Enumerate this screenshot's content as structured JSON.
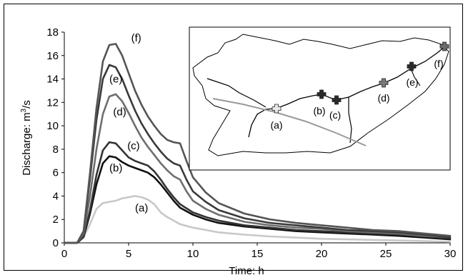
{
  "chart_data": {
    "type": "line",
    "xlabel": "Time: h",
    "ylabel": "Discharge: m",
    "ylabel_sup": "3",
    "ylabel_suffix": "/s",
    "xlim": [
      0,
      30
    ],
    "ylim": [
      0,
      18
    ],
    "xticks": [
      "0",
      "5",
      "10",
      "15",
      "20",
      "25",
      "30"
    ],
    "yticks": [
      "0",
      "2",
      "4",
      "6",
      "8",
      "10",
      "12",
      "14",
      "16",
      "18"
    ],
    "grid": false,
    "series": [
      {
        "name": "(a)",
        "color": "#c8c8c8",
        "x": [
          0,
          1,
          1.5,
          2,
          2.5,
          3,
          3.5,
          4,
          4.5,
          5,
          5.5,
          6,
          6.5,
          7,
          7.5,
          8,
          9,
          10,
          11,
          12,
          14,
          16,
          18,
          20,
          22,
          24,
          26,
          28,
          30
        ],
        "y": [
          0,
          0,
          0.5,
          1.6,
          2.9,
          3.4,
          3.5,
          3.6,
          3.8,
          3.9,
          4.0,
          3.9,
          3.7,
          3.3,
          2.6,
          2.2,
          1.6,
          1.3,
          1.1,
          0.9,
          0.7,
          0.55,
          0.45,
          0.35,
          0.3,
          0.25,
          0.2,
          0.15,
          0.1
        ]
      },
      {
        "name": "(b)",
        "color": "#111111",
        "x": [
          0,
          1,
          1.5,
          2,
          2.5,
          3,
          3.5,
          4,
          4.5,
          5,
          5.5,
          6,
          6.5,
          7,
          7.5,
          8,
          8.5,
          9,
          10,
          11,
          12,
          14,
          16,
          18,
          20,
          22,
          24,
          26,
          28,
          30
        ],
        "y": [
          0,
          0,
          0.5,
          2.5,
          5.0,
          6.8,
          7.4,
          7.3,
          6.9,
          6.6,
          6.4,
          6.2,
          6.0,
          5.6,
          5.0,
          4.3,
          3.6,
          3.0,
          2.4,
          2.0,
          1.7,
          1.4,
          1.2,
          1.0,
          0.9,
          0.8,
          0.7,
          0.6,
          0.45,
          0.3
        ]
      },
      {
        "name": "(c)",
        "color": "#333333",
        "x": [
          0,
          1,
          1.5,
          2,
          2.5,
          3,
          3.5,
          4,
          4.5,
          5,
          5.5,
          6,
          6.5,
          7,
          7.5,
          8,
          8.5,
          9,
          10,
          11,
          12,
          14,
          16,
          18,
          20,
          22,
          24,
          26,
          28,
          30
        ],
        "y": [
          0,
          0,
          0.5,
          2.8,
          5.8,
          7.9,
          8.6,
          8.5,
          7.9,
          7.3,
          7.0,
          6.8,
          6.6,
          6.1,
          5.4,
          4.6,
          3.9,
          3.3,
          2.6,
          2.2,
          1.9,
          1.5,
          1.3,
          1.1,
          1.0,
          0.9,
          0.8,
          0.7,
          0.55,
          0.4
        ]
      },
      {
        "name": "(d)",
        "color": "#6e6e6e",
        "x": [
          0,
          1,
          1.5,
          2,
          2.5,
          3,
          3.5,
          4,
          4.5,
          5,
          5.5,
          6,
          6.5,
          7,
          7.5,
          8,
          8.5,
          9,
          9.5,
          10,
          11,
          12,
          14,
          16,
          18,
          20,
          22,
          24,
          26,
          28,
          30
        ],
        "y": [
          0,
          0,
          0.8,
          4.0,
          8.0,
          11.0,
          12.5,
          12.7,
          12.1,
          11.1,
          10.0,
          9.0,
          8.2,
          7.5,
          6.8,
          6.2,
          5.7,
          5.4,
          4.4,
          3.6,
          2.9,
          2.4,
          1.8,
          1.5,
          1.3,
          1.2,
          1.0,
          0.9,
          0.8,
          0.6,
          0.5
        ]
      },
      {
        "name": "(e)",
        "color": "#3a3a3a",
        "x": [
          0,
          1,
          1.5,
          2,
          2.5,
          3,
          3.5,
          4,
          4.5,
          5,
          5.5,
          6,
          6.5,
          7,
          7.5,
          8,
          8.5,
          9,
          9.5,
          10,
          11,
          12,
          14,
          16,
          18,
          20,
          22,
          24,
          26,
          28,
          30
        ],
        "y": [
          0,
          0,
          1.0,
          5.5,
          10.5,
          14.0,
          15.2,
          15.0,
          14.0,
          12.6,
          11.3,
          10.2,
          9.3,
          8.5,
          7.8,
          7.2,
          6.8,
          6.6,
          5.4,
          4.4,
          3.5,
          2.8,
          2.1,
          1.7,
          1.5,
          1.3,
          1.1,
          1.0,
          0.9,
          0.7,
          0.5
        ]
      },
      {
        "name": "(f)",
        "color": "#555555",
        "x": [
          0,
          1,
          1.5,
          2,
          2.5,
          3,
          3.5,
          4,
          4.5,
          5,
          5.5,
          6,
          6.5,
          7,
          7.5,
          8,
          8.5,
          9,
          9.5,
          10,
          11,
          12,
          14,
          16,
          18,
          20,
          22,
          24,
          26,
          28,
          30
        ],
        "y": [
          0,
          0,
          1.0,
          6.0,
          11.5,
          15.5,
          16.9,
          17.0,
          16.0,
          14.5,
          13.0,
          11.8,
          10.8,
          10.0,
          9.3,
          8.8,
          8.6,
          8.5,
          7.0,
          5.6,
          4.3,
          3.4,
          2.5,
          2.0,
          1.7,
          1.5,
          1.3,
          1.1,
          1.0,
          0.8,
          0.6
        ]
      }
    ],
    "series_labels": [
      {
        "series": "(a)",
        "text": "(a)",
        "x": 5.5,
        "y": 3.0
      },
      {
        "series": "(b)",
        "text": "(b)",
        "x": 3.5,
        "y": 6.4
      },
      {
        "series": "(c)",
        "text": "(c)",
        "x": 4.9,
        "y": 8.3
      },
      {
        "series": "(d)",
        "text": "(d)",
        "x": 3.8,
        "y": 11.2
      },
      {
        "series": "(e)",
        "text": "(e)",
        "x": 3.5,
        "y": 14.0
      },
      {
        "series": "(f)",
        "text": "(f)",
        "x": 5.2,
        "y": 17.5
      }
    ],
    "inset_map": {
      "markers": [
        {
          "label": "(a)",
          "color": "#e8e8e8"
        },
        {
          "label": "(b)",
          "color": "#2a2a2a"
        },
        {
          "label": "(c)",
          "color": "#2a2a2a"
        },
        {
          "label": "(d)",
          "color": "#7a7a7a"
        },
        {
          "label": "(e)",
          "color": "#2a2a2a"
        },
        {
          "label": "(f)",
          "color": "#6a6a6a"
        }
      ]
    }
  }
}
